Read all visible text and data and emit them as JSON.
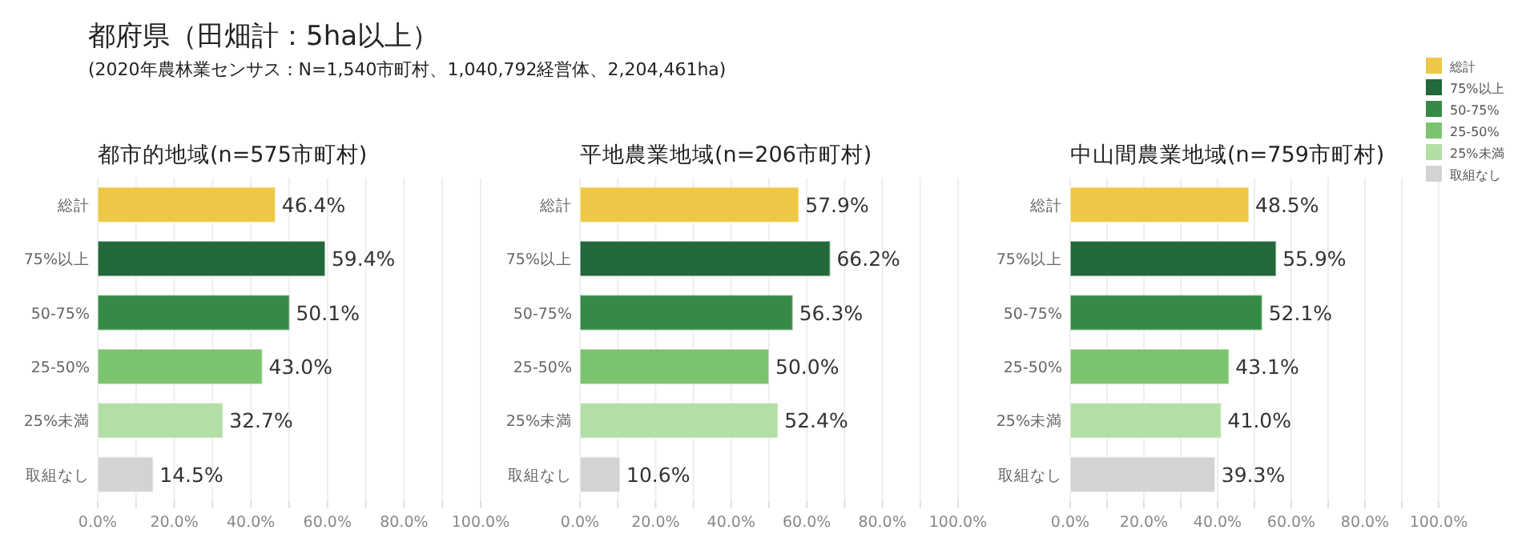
{
  "chart_data": [
    {
      "type": "bar",
      "orientation": "horizontal",
      "title": "都市的地域(n=575市町村)",
      "annotations": [
        "都府県（田畑計：5ha以上）",
        "(2020年農林業センサス：N=1,540市町村、1,040,792経営体、2,204,461ha)"
      ],
      "categories": [
        "総計",
        "75%以上",
        "50-75%",
        "25-50%",
        "25%未満",
        "取組なし"
      ],
      "values": [
        46.4,
        59.4,
        50.1,
        43.0,
        32.7,
        14.5
      ],
      "value_labels": [
        "46.4%",
        "59.4%",
        "50.1%",
        "43.0%",
        "32.7%",
        "14.5%"
      ],
      "colors": [
        "#ecc846",
        "#22683a",
        "#368a47",
        "#7cc36f",
        "#b2dfa5",
        "#d3d3d3"
      ],
      "xlim": [
        0,
        100
      ],
      "xticks": [
        {
          "value": 0,
          "label": "0.0%"
        },
        {
          "value": 10,
          "label": null
        },
        {
          "value": 20,
          "label": "20.0%"
        },
        {
          "value": 30,
          "label": null
        },
        {
          "value": 40,
          "label": "40.0%"
        },
        {
          "value": 50,
          "label": null
        },
        {
          "value": 60,
          "label": "60.0%"
        },
        {
          "value": 70,
          "label": null
        },
        {
          "value": 80,
          "label": "80.0%"
        },
        {
          "value": 90,
          "label": null
        },
        {
          "value": 100,
          "label": "100.0%"
        }
      ],
      "grid": "x"
    },
    {
      "type": "bar",
      "orientation": "horizontal",
      "title": "平地農業地域(n=206市町村)",
      "categories": [
        "総計",
        "75%以上",
        "50-75%",
        "25-50%",
        "25%未満",
        "取組なし"
      ],
      "values": [
        57.9,
        66.2,
        56.3,
        50.0,
        52.4,
        10.6
      ],
      "value_labels": [
        "57.9%",
        "66.2%",
        "56.3%",
        "50.0%",
        "52.4%",
        "10.6%"
      ],
      "colors": [
        "#ecc846",
        "#22683a",
        "#368a47",
        "#7cc36f",
        "#b2dfa5",
        "#d3d3d3"
      ],
      "xlim": [
        0,
        100
      ],
      "xticks": [
        {
          "value": 0,
          "label": "0.0%"
        },
        {
          "value": 10,
          "label": null
        },
        {
          "value": 20,
          "label": "20.0%"
        },
        {
          "value": 30,
          "label": null
        },
        {
          "value": 40,
          "label": "40.0%"
        },
        {
          "value": 50,
          "label": null
        },
        {
          "value": 60,
          "label": "60.0%"
        },
        {
          "value": 70,
          "label": null
        },
        {
          "value": 80,
          "label": "80.0%"
        },
        {
          "value": 90,
          "label": null
        },
        {
          "value": 100,
          "label": "100.0%"
        }
      ],
      "grid": "x"
    },
    {
      "type": "bar",
      "orientation": "horizontal",
      "title": "中山間農業地域(n=759市町村)",
      "categories": [
        "総計",
        "75%以上",
        "50-75%",
        "25-50%",
        "25%未満",
        "取組なし"
      ],
      "values": [
        48.5,
        55.9,
        52.1,
        43.1,
        41.0,
        39.3
      ],
      "value_labels": [
        "48.5%",
        "55.9%",
        "52.1%",
        "43.1%",
        "41.0%",
        "39.3%"
      ],
      "colors": [
        "#ecc846",
        "#22683a",
        "#368a47",
        "#7cc36f",
        "#b2dfa5",
        "#d3d3d3"
      ],
      "xlim": [
        0,
        100
      ],
      "xticks": [
        {
          "value": 0,
          "label": "0.0%"
        },
        {
          "value": 10,
          "label": null
        },
        {
          "value": 20,
          "label": "20.0%"
        },
        {
          "value": 30,
          "label": null
        },
        {
          "value": 40,
          "label": "40.0%"
        },
        {
          "value": 50,
          "label": null
        },
        {
          "value": 60,
          "label": "60.0%"
        },
        {
          "value": 70,
          "label": null
        },
        {
          "value": 80,
          "label": "80.0%"
        },
        {
          "value": 90,
          "label": null
        },
        {
          "value": 100,
          "label": "100.0%"
        }
      ],
      "grid": "x"
    }
  ]
}
